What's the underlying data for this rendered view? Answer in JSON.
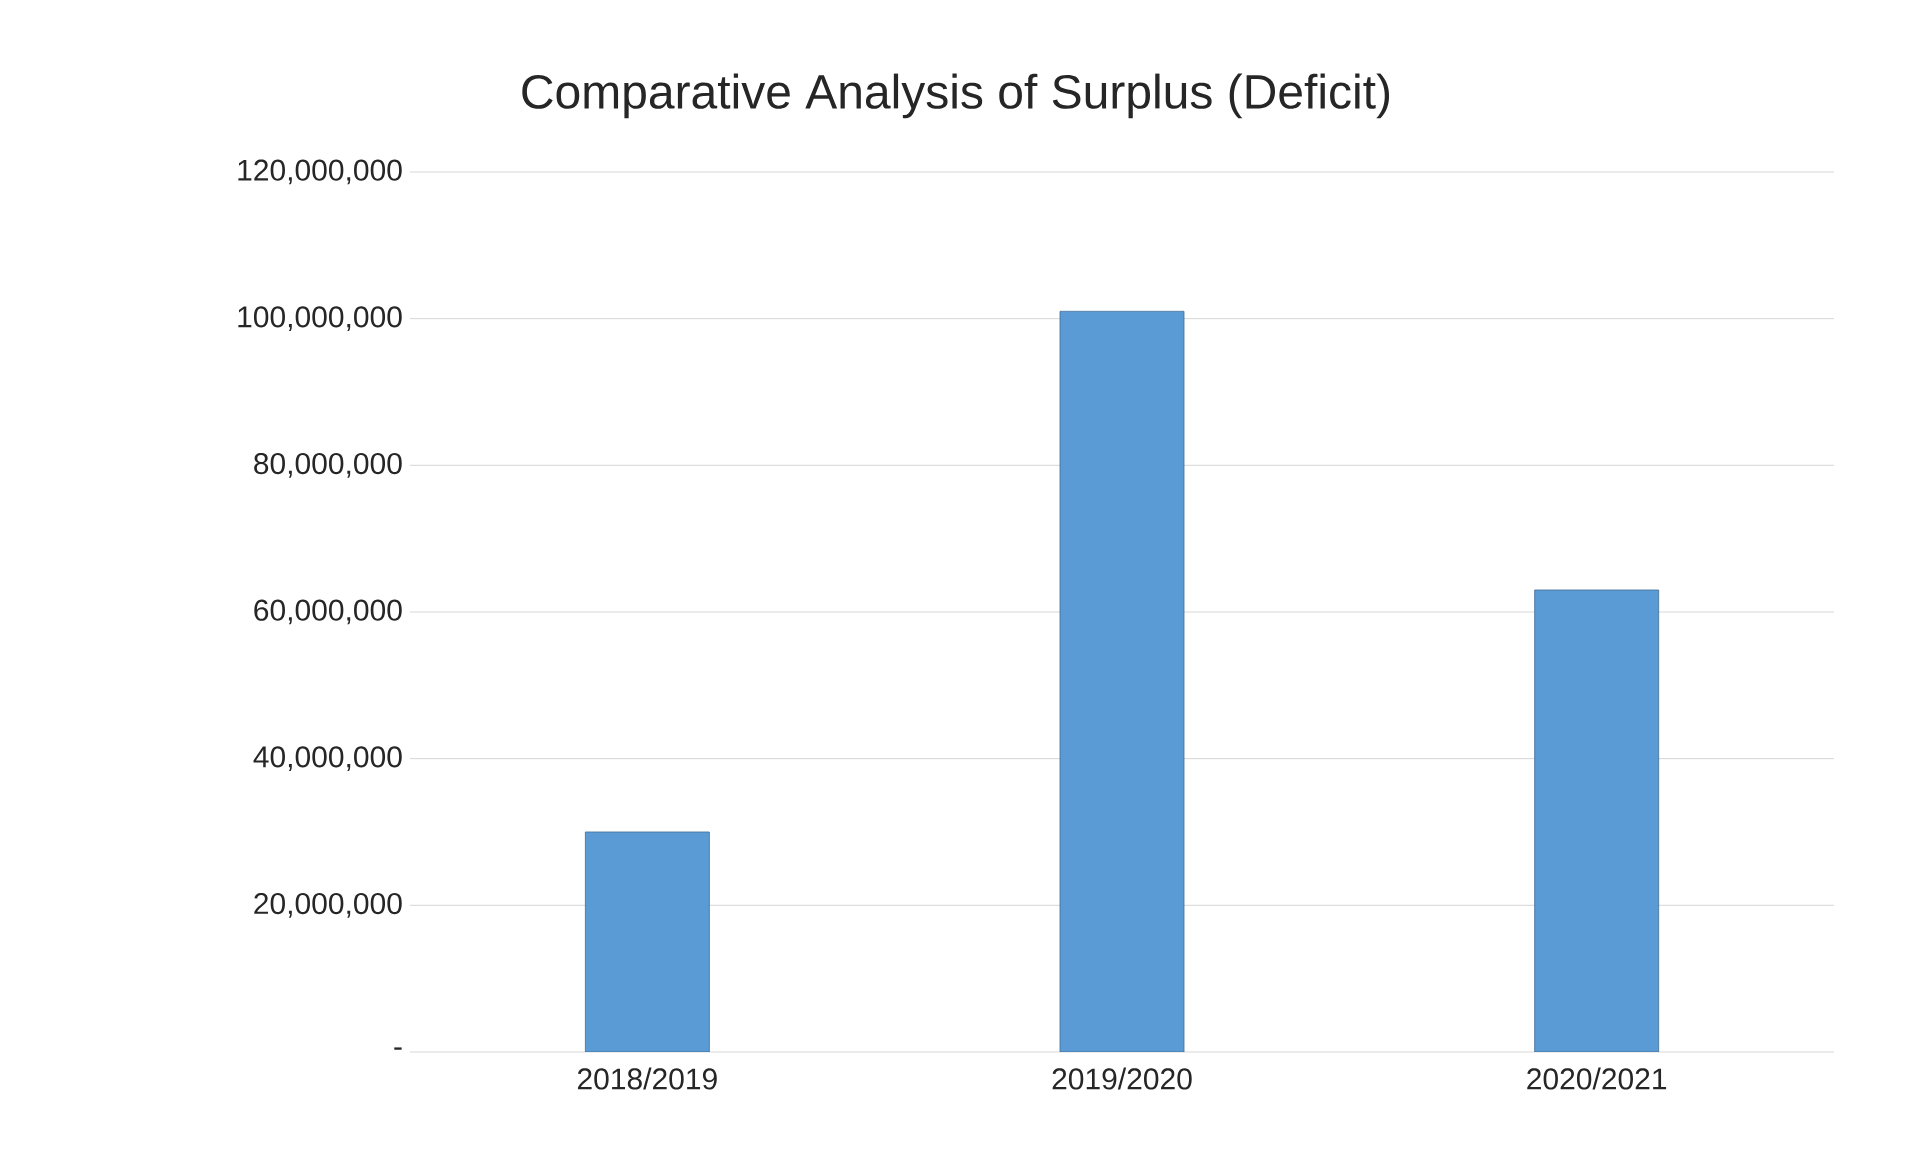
{
  "chart_data": {
    "type": "bar",
    "title": "Comparative Analysis of Surplus (Deficit)",
    "categories": [
      "2018/2019",
      "2019/2020",
      "2020/2021"
    ],
    "values": [
      30000000,
      101000000,
      63000000
    ],
    "color": "#5b9bd5",
    "ylim": [
      0,
      120000000
    ],
    "yticks": [
      {
        "value": 0,
        "label": "-"
      },
      {
        "value": 20000000,
        "label": "20,000,000"
      },
      {
        "value": 40000000,
        "label": "40,000,000"
      },
      {
        "value": 60000000,
        "label": "60,000,000"
      },
      {
        "value": 80000000,
        "label": "80,000,000"
      },
      {
        "value": 100000000,
        "label": "100,000,000"
      },
      {
        "value": 120000000,
        "label": "120,000,000"
      }
    ],
    "grid": "y"
  }
}
